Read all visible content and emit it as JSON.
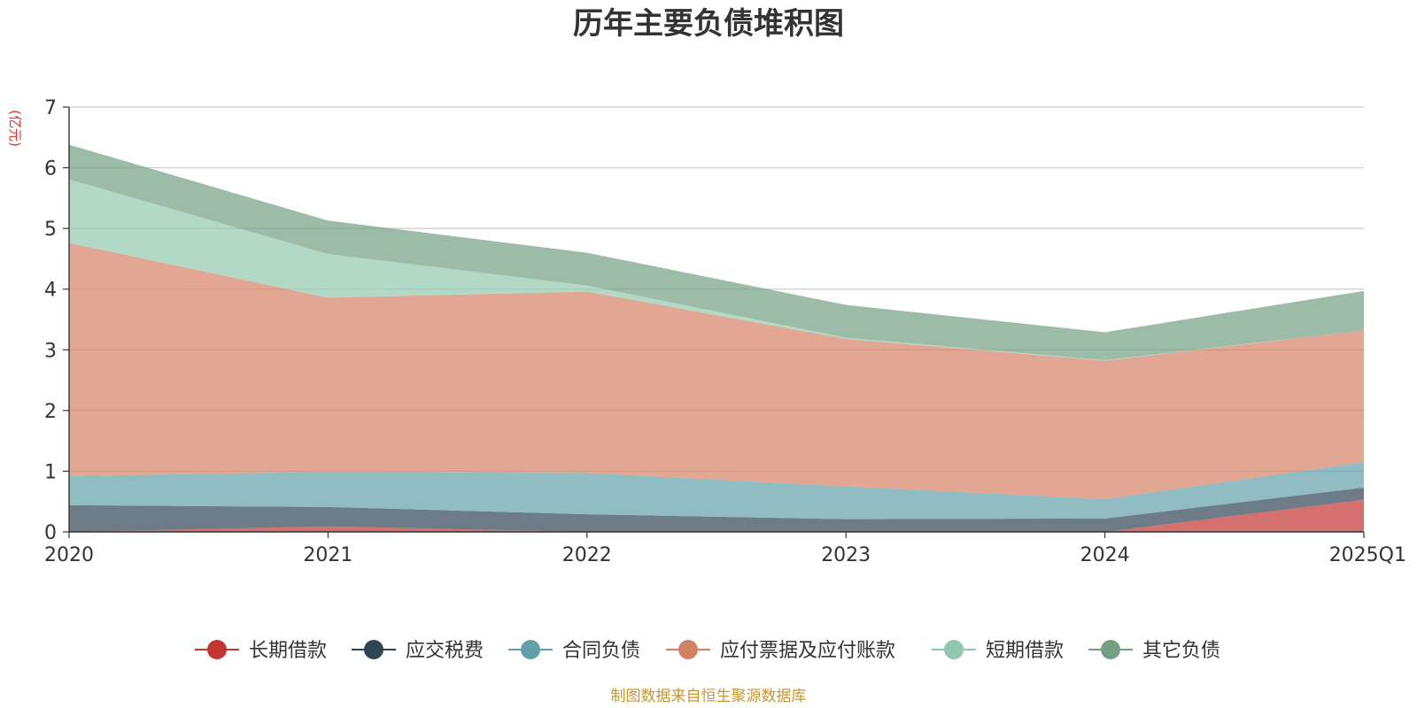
{
  "chart_data": {
    "type": "area",
    "stacked": true,
    "title": "历年主要负债堆积图",
    "y_unit": "(亿元)",
    "categories": [
      "2020",
      "2021",
      "2022",
      "2023",
      "2024",
      "2025Q1"
    ],
    "ylim": [
      0,
      7
    ],
    "yticks": [
      "0",
      "1",
      "2",
      "3",
      "4",
      "5",
      "6",
      "7"
    ],
    "grid": true,
    "legend_position": "bottom",
    "series": [
      {
        "name": "长期借款",
        "color": "#c23531",
        "values": [
          0.0,
          0.09,
          0.0,
          0.0,
          0.0,
          0.53
        ]
      },
      {
        "name": "应交税费",
        "color": "#2f4554",
        "values": [
          0.44,
          0.32,
          0.29,
          0.21,
          0.22,
          0.2
        ]
      },
      {
        "name": "合同负债",
        "color": "#61a0a8",
        "values": [
          0.48,
          0.58,
          0.68,
          0.54,
          0.32,
          0.42
        ]
      },
      {
        "name": "应付票据及应付账款",
        "color": "#d48265",
        "values": [
          3.84,
          2.87,
          2.99,
          2.43,
          2.28,
          2.17
        ]
      },
      {
        "name": "短期借款",
        "color": "#91c7ae",
        "values": [
          1.05,
          0.72,
          0.1,
          0.02,
          0.01,
          0.0
        ]
      },
      {
        "name": "其它负债",
        "color": "#749f83",
        "values": [
          0.57,
          0.55,
          0.54,
          0.54,
          0.46,
          0.65
        ]
      }
    ],
    "source": "制图数据来自恒生聚源数据库"
  }
}
